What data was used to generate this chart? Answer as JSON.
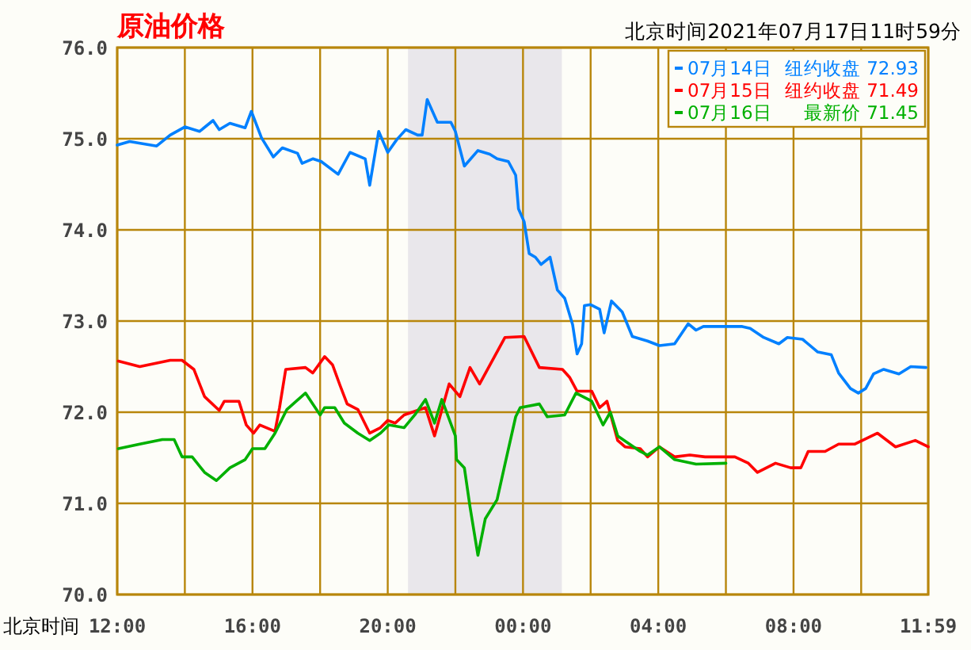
{
  "chart_data": {
    "type": "line",
    "title": "原油价格",
    "subtitle": "北京时间2021年07月17日11时59分",
    "xlabel": "北京时间",
    "annotations": [
      "纽约收盘 72.93",
      "纽约收盘 71.49",
      "最新价 71.45"
    ],
    "xlim": [
      "2021-07-16T12:00",
      "2021-07-17T11:59"
    ],
    "ylim": [
      70,
      76
    ],
    "xticks": [
      {
        "value": "2021-07-16T12:00",
        "label": "12:00"
      },
      {
        "value": "2021-07-16T14:00",
        "label": null
      },
      {
        "value": "2021-07-16T16:00",
        "label": "16:00"
      },
      {
        "value": "2021-07-16T18:00",
        "label": null
      },
      {
        "value": "2021-07-16T20:00",
        "label": "20:00"
      },
      {
        "value": "2021-07-16T22:00",
        "label": null
      },
      {
        "value": "2021-07-17T00:00",
        "label": "00:00"
      },
      {
        "value": "2021-07-17T02:00",
        "label": null
      },
      {
        "value": "2021-07-17T04:00",
        "label": "04:00"
      },
      {
        "value": "2021-07-17T06:00",
        "label": null
      },
      {
        "value": "2021-07-17T08:00",
        "label": "08:00"
      },
      {
        "value": "2021-07-17T10:00",
        "label": null
      },
      {
        "value": "2021-07-17T11:59",
        "label": "11:59"
      }
    ],
    "yticks": [
      {
        "value": 70,
        "label": "70.0"
      },
      {
        "value": 71,
        "label": "71.0"
      },
      {
        "value": 72,
        "label": "72.0"
      },
      {
        "value": 73,
        "label": "73.0"
      },
      {
        "value": 74,
        "label": "74.0"
      },
      {
        "value": 75,
        "label": "75.0"
      },
      {
        "value": 76,
        "label": "76.0"
      }
    ],
    "grid": true,
    "legend": "top right",
    "bands": [
      {
        "axis": "x",
        "from": "2021-07-16T20:36",
        "to": "2021-07-17T01:09",
        "color": "#e9e7eb"
      }
    ],
    "series": [
      {
        "name": "07月14日",
        "color": "#0080ff",
        "x": [
          "2021-07-16T12:00",
          "2021-07-16T12:22",
          "2021-07-16T13:10",
          "2021-07-16T13:34",
          "2021-07-16T14:00",
          "2021-07-16T14:26",
          "2021-07-16T14:50",
          "2021-07-16T15:01",
          "2021-07-16T15:20",
          "2021-07-16T15:47",
          "2021-07-16T15:58",
          "2021-07-16T16:16",
          "2021-07-16T16:37",
          "2021-07-16T16:53",
          "2021-07-16T17:20",
          "2021-07-16T17:28",
          "2021-07-16T17:47",
          "2021-07-16T18:02",
          "2021-07-16T18:32",
          "2021-07-16T18:53",
          "2021-07-16T19:20",
          "2021-07-16T19:28",
          "2021-07-16T19:44",
          "2021-07-16T20:00",
          "2021-07-16T20:16",
          "2021-07-16T20:32",
          "2021-07-16T20:53",
          "2021-07-16T21:01",
          "2021-07-16T21:10",
          "2021-07-16T21:28",
          "2021-07-16T21:52",
          "2021-07-16T22:00",
          "2021-07-16T22:16",
          "2021-07-16T22:40",
          "2021-07-16T23:01",
          "2021-07-16T23:14",
          "2021-07-16T23:34",
          "2021-07-16T23:47",
          "2021-07-16T23:52",
          "2021-07-17T00:02",
          "2021-07-17T00:11",
          "2021-07-17T00:22",
          "2021-07-17T00:32",
          "2021-07-17T00:48",
          "2021-07-17T01:01",
          "2021-07-17T01:14",
          "2021-07-17T01:28",
          "2021-07-17T01:36",
          "2021-07-17T01:44",
          "2021-07-17T01:49",
          "2021-07-17T02:00",
          "2021-07-17T02:16",
          "2021-07-17T02:24",
          "2021-07-17T02:37",
          "2021-07-17T02:56",
          "2021-07-17T03:14",
          "2021-07-17T03:41",
          "2021-07-17T04:02",
          "2021-07-17T04:29",
          "2021-07-17T04:53",
          "2021-07-17T05:07",
          "2021-07-17T05:20",
          "2021-07-17T06:29",
          "2021-07-17T06:43",
          "2021-07-17T07:07",
          "2021-07-17T07:34",
          "2021-07-17T07:49",
          "2021-07-17T08:16",
          "2021-07-17T08:43",
          "2021-07-17T09:07",
          "2021-07-17T09:20",
          "2021-07-17T09:41",
          "2021-07-17T09:55",
          "2021-07-17T10:08",
          "2021-07-17T10:22",
          "2021-07-17T10:40",
          "2021-07-17T11:07",
          "2021-07-17T11:28",
          "2021-07-17T11:55"
        ],
        "values": [
          74.93,
          74.97,
          74.92,
          75.04,
          75.13,
          75.08,
          75.2,
          75.1,
          75.17,
          75.12,
          75.3,
          75.01,
          74.8,
          74.9,
          74.84,
          74.73,
          74.78,
          74.75,
          74.61,
          74.85,
          74.78,
          74.49,
          75.08,
          74.85,
          74.99,
          75.1,
          75.04,
          75.04,
          75.43,
          75.18,
          75.18,
          75.08,
          74.7,
          74.87,
          74.83,
          74.78,
          74.75,
          74.6,
          74.23,
          74.09,
          73.74,
          73.7,
          73.62,
          73.7,
          73.34,
          73.25,
          72.96,
          72.64,
          72.75,
          73.17,
          73.18,
          73.13,
          72.87,
          73.22,
          73.1,
          72.83,
          72.78,
          72.73,
          72.75,
          72.97,
          72.9,
          72.94,
          72.94,
          72.92,
          72.82,
          72.75,
          72.82,
          72.8,
          72.66,
          72.63,
          72.43,
          72.26,
          72.21,
          72.26,
          72.42,
          72.47,
          72.42,
          72.5,
          72.49
        ]
      },
      {
        "name": "07月15日",
        "color": "#ff0000",
        "x": [
          "2021-07-16T12:02",
          "2021-07-16T12:40",
          "2021-07-16T13:34",
          "2021-07-16T13:55",
          "2021-07-16T14:16",
          "2021-07-16T14:35",
          "2021-07-16T15:01",
          "2021-07-16T15:10",
          "2021-07-16T15:36",
          "2021-07-16T15:49",
          "2021-07-16T16:02",
          "2021-07-16T16:13",
          "2021-07-16T16:40",
          "2021-07-16T16:48",
          "2021-07-16T16:59",
          "2021-07-16T17:34",
          "2021-07-16T17:47",
          "2021-07-16T18:08",
          "2021-07-16T18:22",
          "2021-07-16T18:35",
          "2021-07-16T18:48",
          "2021-07-16T19:07",
          "2021-07-16T19:28",
          "2021-07-16T19:47",
          "2021-07-16T20:00",
          "2021-07-16T20:13",
          "2021-07-16T20:29",
          "2021-07-16T21:07",
          "2021-07-16T21:23",
          "2021-07-16T21:49",
          "2021-07-16T22:08",
          "2021-07-16T22:26",
          "2021-07-16T22:43",
          "2021-07-16T23:28",
          "2021-07-17T00:02",
          "2021-07-17T00:29",
          "2021-07-17T01:10",
          "2021-07-17T01:23",
          "2021-07-17T01:36",
          "2021-07-17T02:02",
          "2021-07-17T02:16",
          "2021-07-17T02:29",
          "2021-07-17T02:48",
          "2021-07-17T03:01",
          "2021-07-17T03:28",
          "2021-07-17T03:41",
          "2021-07-17T04:02",
          "2021-07-17T04:29",
          "2021-07-17T04:56",
          "2021-07-17T05:23",
          "2021-07-17T06:16",
          "2021-07-17T06:40",
          "2021-07-17T06:56",
          "2021-07-17T07:28",
          "2021-07-17T07:55",
          "2021-07-17T08:13",
          "2021-07-17T08:26",
          "2021-07-17T08:56",
          "2021-07-17T09:20",
          "2021-07-17T09:49",
          "2021-07-17T10:29",
          "2021-07-17T11:01",
          "2021-07-17T11:36",
          "2021-07-17T11:59"
        ],
        "values": [
          72.56,
          72.5,
          72.57,
          72.57,
          72.47,
          72.17,
          72.02,
          72.12,
          72.12,
          71.86,
          71.77,
          71.86,
          71.79,
          72.05,
          72.47,
          72.49,
          72.43,
          72.61,
          72.52,
          72.3,
          72.09,
          72.03,
          71.77,
          71.83,
          71.91,
          71.88,
          71.97,
          72.05,
          71.74,
          72.31,
          72.17,
          72.49,
          72.31,
          72.82,
          72.83,
          72.49,
          72.47,
          72.38,
          72.23,
          72.23,
          72.05,
          72.12,
          71.69,
          71.62,
          71.6,
          71.51,
          71.62,
          71.51,
          71.53,
          71.51,
          71.51,
          71.44,
          71.34,
          71.44,
          71.39,
          71.39,
          71.57,
          71.57,
          71.65,
          71.65,
          71.77,
          71.62,
          71.69,
          71.62
        ]
      },
      {
        "name": "07月16日",
        "color": "#00b000",
        "x": [
          "2021-07-16T12:02",
          "2021-07-16T12:40",
          "2021-07-16T13:20",
          "2021-07-16T13:41",
          "2021-07-16T13:55",
          "2021-07-16T14:13",
          "2021-07-16T14:35",
          "2021-07-16T14:56",
          "2021-07-16T15:20",
          "2021-07-16T15:47",
          "2021-07-16T16:00",
          "2021-07-16T16:22",
          "2021-07-16T16:40",
          "2021-07-16T17:01",
          "2021-07-16T17:34",
          "2021-07-16T18:00",
          "2021-07-16T18:08",
          "2021-07-16T18:26",
          "2021-07-16T18:43",
          "2021-07-16T19:07",
          "2021-07-16T19:28",
          "2021-07-16T19:47",
          "2021-07-16T20:02",
          "2021-07-16T20:29",
          "2021-07-16T20:48",
          "2021-07-16T21:07",
          "2021-07-16T21:23",
          "2021-07-16T21:36",
          "2021-07-16T22:00",
          "2021-07-16T22:02",
          "2021-07-16T22:16",
          "2021-07-16T22:26",
          "2021-07-16T22:40",
          "2021-07-16T22:53",
          "2021-07-16T23:14",
          "2021-07-16T23:28",
          "2021-07-16T23:47",
          "2021-07-16T23:55",
          "2021-07-17T00:29",
          "2021-07-17T00:43",
          "2021-07-17T01:14",
          "2021-07-17T01:34",
          "2021-07-17T02:02",
          "2021-07-17T02:22",
          "2021-07-17T02:35",
          "2021-07-17T02:48",
          "2021-07-17T03:28",
          "2021-07-17T03:41",
          "2021-07-17T04:02",
          "2021-07-17T04:29",
          "2021-07-17T05:07",
          "2021-07-17T06:00"
        ],
        "values": [
          71.6,
          71.65,
          71.7,
          71.7,
          71.51,
          71.51,
          71.34,
          71.25,
          71.39,
          71.48,
          71.6,
          71.6,
          71.77,
          72.03,
          72.21,
          71.97,
          72.05,
          72.05,
          71.88,
          71.77,
          71.69,
          71.77,
          71.86,
          71.83,
          71.97,
          72.14,
          71.88,
          72.14,
          71.74,
          71.48,
          71.39,
          70.96,
          70.43,
          70.83,
          71.04,
          71.43,
          71.95,
          72.05,
          72.09,
          71.95,
          71.97,
          72.21,
          72.12,
          71.86,
          72.0,
          71.74,
          71.57,
          71.53,
          71.62,
          71.48,
          71.43,
          71.44
        ]
      }
    ]
  }
}
